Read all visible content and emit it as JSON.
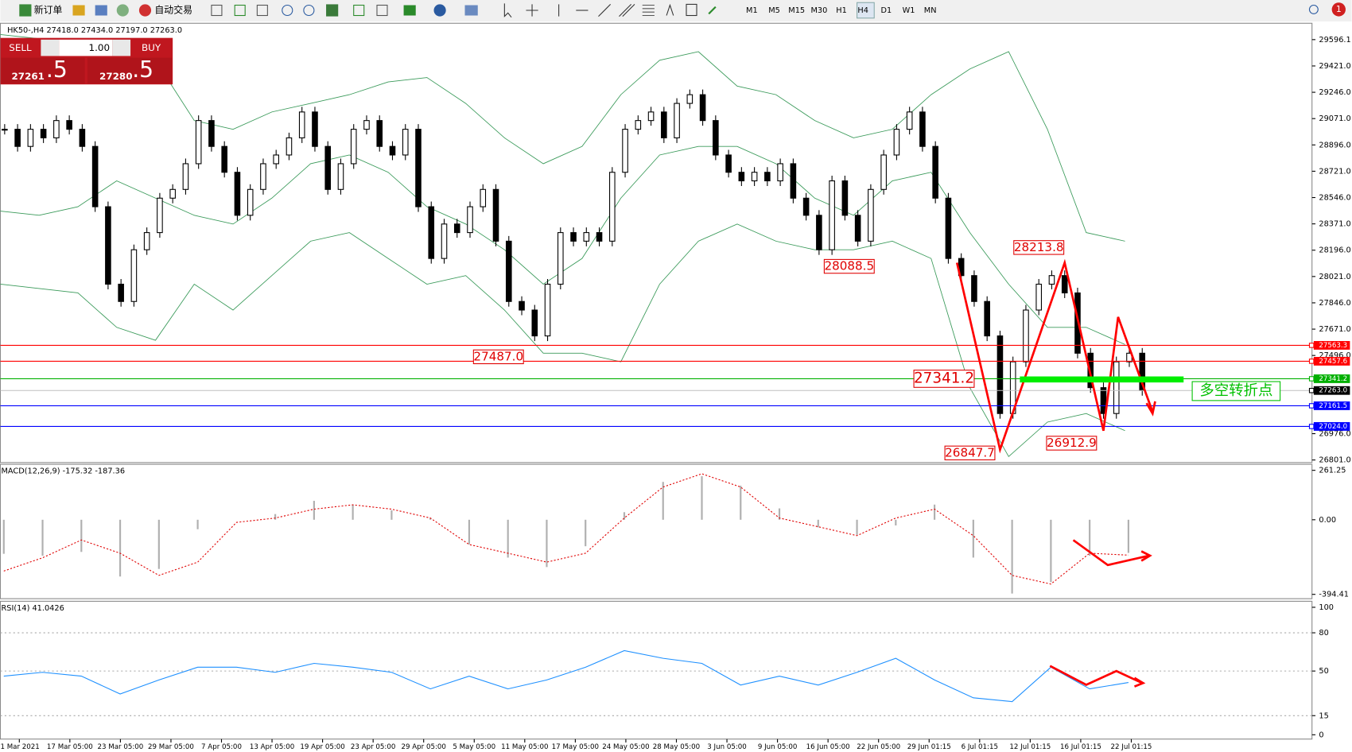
{
  "toolbar": {
    "new_order": "新订单",
    "auto_trade": "自动交易",
    "timeframes": [
      "M1",
      "M5",
      "M15",
      "M30",
      "H1",
      "H4",
      "D1",
      "W1",
      "MN"
    ],
    "notifications": "1"
  },
  "trade_panel": {
    "sell": "SELL",
    "volume": "1.00",
    "buy": "BUY",
    "bid_main": "27261",
    "bid_frac": ".5",
    "ask_main": "27280",
    "ask_frac": ".5"
  },
  "chart": {
    "header": "HK50-,H4  27418.0 27434.0 27197.0 27263.0",
    "ylim": [
      26801.0,
      29596.1
    ],
    "yticks": [
      {
        "value": 29596.1,
        "label": "29596.1"
      },
      {
        "value": 29421.0,
        "label": "29421.0"
      },
      {
        "value": 29246.0,
        "label": "29246.0"
      },
      {
        "value": 29071.0,
        "label": "29071.0"
      },
      {
        "value": 28896.0,
        "label": "28896.0"
      },
      {
        "value": 28721.0,
        "label": "28721.0"
      },
      {
        "value": 28546.0,
        "label": "28546.0"
      },
      {
        "value": 28371.0,
        "label": "28371.0"
      },
      {
        "value": 28196.0,
        "label": "28196.0"
      },
      {
        "value": 28021.0,
        "label": "28021.0"
      },
      {
        "value": 27846.0,
        "label": "27846.0"
      },
      {
        "value": 27671.0,
        "label": "27671.0"
      },
      {
        "value": 27496.0,
        "label": "27496.0"
      },
      {
        "value": 26976.0,
        "label": "26976.0"
      },
      {
        "value": 26801.0,
        "label": "26801.0"
      }
    ],
    "closes": [
      29000,
      28886,
      29000,
      28943,
      29058,
      29000,
      28886,
      28485,
      27970,
      27855,
      28199,
      28313,
      28542,
      28600,
      28771,
      29058,
      28886,
      28714,
      28428,
      28600,
      28771,
      28829,
      28943,
      29115,
      28886,
      28600,
      28771,
      29000,
      29058,
      28886,
      28829,
      29000,
      28485,
      28141,
      28370,
      28313,
      28485,
      28600,
      28256,
      27855,
      27798,
      27626,
      27970,
      28313,
      28256,
      28313,
      28256,
      28714,
      29000,
      29058,
      29115,
      28943,
      29172,
      29230,
      29058,
      28829,
      28714,
      28657,
      28714,
      28657,
      28771,
      28542,
      28428,
      28199,
      28657,
      28428,
      28256,
      28600,
      28829,
      29000,
      29115,
      28886,
      28542,
      28141,
      28027,
      27855,
      27626,
      27110,
      27454,
      27798,
      27970,
      28027,
      27912,
      27511,
      27282,
      27110,
      27454,
      27511,
      27263
    ],
    "bb_upper": [
      29630,
      29602,
      29516,
      29401,
      29459,
      29058,
      29000,
      29115,
      29172,
      29230,
      29315,
      29344,
      29172,
      28943,
      28771,
      28886,
      29230,
      29459,
      29516,
      29287,
      29230,
      29058,
      28943,
      29000,
      29230,
      29401,
      29516,
      29000,
      28313,
      28256
    ],
    "bb_middle": [
      28456,
      28428,
      28485,
      28657,
      28542,
      28428,
      28370,
      28542,
      28771,
      28829,
      28714,
      28485,
      28370,
      28199,
      27970,
      28141,
      28542,
      28829,
      28886,
      28886,
      28771,
      28542,
      28428,
      28657,
      28714,
      28313,
      27970,
      27683,
      27683,
      27569
    ],
    "bb_lower": [
      27970,
      27941,
      27912,
      27683,
      27597,
      27970,
      27798,
      28027,
      28256,
      28313,
      28141,
      27970,
      28027,
      27798,
      27511,
      27511,
      27454,
      27970,
      28256,
      28370,
      28256,
      28199,
      28199,
      28256,
      28141,
      27282,
      26824,
      27053,
      27110,
      26996
    ],
    "levels": [
      {
        "value": 27563.3,
        "label": "27563.3",
        "color": "#ff0000"
      },
      {
        "value": 27457.6,
        "label": "27457.6",
        "color": "#ff0000"
      },
      {
        "value": 27341.2,
        "label": "27341.2",
        "color": "#00b000"
      },
      {
        "value": 27263.0,
        "label": "27263.0",
        "color": "#000000"
      },
      {
        "value": 27161.5,
        "label": "27161.5",
        "color": "#0000ff"
      },
      {
        "value": 27024.0,
        "label": "27024.0",
        "color": "#0000ff"
      }
    ],
    "annotations": [
      {
        "value": 28213.8,
        "label": "28213.8"
      },
      {
        "value": 28088.5,
        "label": "28088.5"
      },
      {
        "value": 27487.0,
        "label": "27487.0"
      },
      {
        "value": 27341.2,
        "label": "27341.2"
      },
      {
        "value": 26847.7,
        "label": "26847.7"
      },
      {
        "value": 26912.9,
        "label": "26912.9"
      }
    ],
    "signal_text": "多空转折点",
    "dates": [
      "1 Mar 2021",
      "17 Mar 05:00",
      "23 Mar 05:00",
      "29 Mar 05:00",
      "7 Apr 05:00",
      "13 Apr 05:00",
      "19 Apr 05:00",
      "23 Apr 05:00",
      "29 Apr 05:00",
      "5 May 05:00",
      "11 May 05:00",
      "17 May 05:00",
      "24 May 05:00",
      "28 May 05:00",
      "3 Jun 05:00",
      "9 Jun 05:00",
      "16 Jun 05:00",
      "22 Jun 05:00",
      "29 Jun 01:15",
      "6 Jul 01:15",
      "12 Jul 01:15",
      "16 Jul 01:15",
      "22 Jul 01:15"
    ]
  },
  "macd": {
    "header": "MACD(12,26,9) -175.32 -187.36",
    "ylim": [
      -394.41,
      261.25
    ],
    "yticks": [
      261.25,
      {
        "value": 0,
        "label": "0.00"
      },
      -394.41
    ],
    "histogram": [
      -180,
      -190,
      -170,
      -300,
      -260,
      -50,
      0,
      30,
      100,
      80,
      50,
      10,
      -130,
      -200,
      -250,
      -140,
      40,
      200,
      230,
      180,
      60,
      -40,
      -80,
      -30,
      80,
      -200,
      -390,
      -330,
      -190,
      -175
    ],
    "signal": [
      -271,
      -201,
      -107,
      -177,
      -294,
      -224,
      -14,
      9,
      56,
      79,
      56,
      9,
      -131,
      -177,
      -224,
      -177,
      9,
      173,
      243,
      173,
      9,
      -37,
      -84,
      9,
      56,
      -84,
      -294,
      -340,
      -177,
      -187
    ]
  },
  "rsi": {
    "header": "RSI(14) 41.0426",
    "ylim": [
      0,
      100
    ],
    "yticks": [
      100,
      80,
      50,
      15,
      0
    ],
    "values": [
      46,
      49,
      46,
      32,
      43,
      53,
      53,
      49,
      56,
      53,
      49,
      36,
      46,
      36,
      43,
      53,
      66,
      60,
      56,
      39,
      46,
      39,
      49,
      60,
      43,
      29,
      26,
      53,
      36,
      41
    ]
  }
}
